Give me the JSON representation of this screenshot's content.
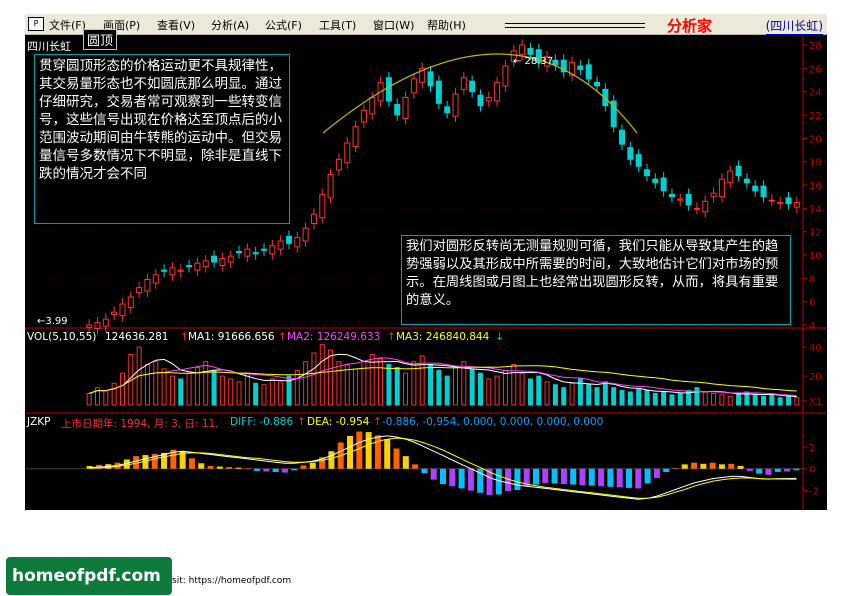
{
  "menubar": {
    "items": [
      "文件(F)",
      "画面(P)",
      "查看(V)",
      "分析(A)",
      "公式(F)",
      "工具(T)",
      "窗口(W)",
      "帮助(H)"
    ],
    "brand": "分析家",
    "stock": "四川长虹"
  },
  "main_panel": {
    "stock_name": "四川长虹",
    "pattern_tag": "圆顶",
    "high_label": "28.37",
    "low_label": "3.99",
    "note_left": "贯穿圆顶形态的价格运动更不具规律性，其交易量形态也不如圆底那么明显。通过仔细研究，交易者常可观察到一些转变信号，这些信号出现在价格达至顶点后的小范围波动期间由牛转熊的运动中。但交易量信号多数情况下不明显，除非是直线下跌的情况才会不同",
    "note_right": "我们对圆形反转尚无测量规则可循，我们只能从导致其产生的趋势强弱以及其形成中所需要的时间，大致地估计它们对市场的预示。在周线图或月图上也经常出现圆形反转，从而，将具有重要的意义。",
    "y_ticks": [
      "28",
      "26",
      "24",
      "22",
      "20",
      "18",
      "16",
      "14",
      "12",
      "10",
      "8",
      "6",
      "4"
    ]
  },
  "volume_panel": {
    "title": "VOL(5,10,55)",
    "value": "124636.281",
    "ma1": "MA1: 91666.656",
    "ma2": "MA2: 126249.633",
    "ma3": "MA3: 246840.844",
    "y_ticks": [
      "40",
      "20",
      "X1"
    ]
  },
  "indicator_panel": {
    "title": "JZKP",
    "date_text": "上市日期年: 1994, 月: 3, 日: 11,",
    "diff": "DIFF: -0.886",
    "dea": "DEA: -0.954",
    "vals": "-0.886, -0.954, 0.000, 0.000, 0.000, 0.000",
    "y_ticks": [
      "2",
      "0",
      "-2"
    ]
  },
  "colors": {
    "up": "#ff3030",
    "down": "#00d0d0",
    "axis": "#c00000",
    "arc": "#c8b400",
    "ma1": "#ffffff",
    "ma2": "#ff40ff",
    "ma3": "#ffff00"
  },
  "chart_data": [
    {
      "type": "candlestick",
      "title": "四川长虹",
      "ylim": [
        4,
        28
      ],
      "annotations": [
        "28.37",
        "3.99"
      ],
      "close": [
        4.0,
        4.2,
        4.5,
        5.1,
        5.8,
        6.4,
        7.2,
        7.9,
        8.3,
        8.6,
        8.9,
        8.7,
        9.0,
        9.3,
        9.5,
        9.4,
        9.7,
        9.9,
        10.2,
        10.5,
        10.1,
        10.4,
        10.8,
        11.2,
        11.0,
        11.5,
        12.3,
        13.5,
        15.2,
        16.9,
        18.2,
        19.6,
        21.0,
        22.4,
        23.5,
        24.8,
        23.2,
        22.0,
        23.5,
        25.1,
        26.0,
        24.5,
        23.0,
        22.2,
        23.8,
        25.2,
        24.0,
        22.8,
        23.5,
        24.8,
        26.2,
        27.5,
        28.0,
        27.2,
        26.5,
        27.0,
        26.3,
        25.7,
        26.5,
        25.9,
        25.1,
        24.5,
        22.8,
        21.0,
        19.5,
        18.2,
        17.6,
        16.8,
        16.2,
        15.5,
        15.0,
        14.8,
        14.3,
        14.0,
        14.6,
        15.3,
        16.5,
        17.2,
        16.8,
        16.2,
        15.5,
        15.0,
        14.7,
        14.5,
        14.4,
        14.5
      ]
    },
    {
      "type": "bar",
      "title": "VOL(5,10,55)",
      "values": [
        8,
        12,
        10,
        15,
        22,
        35,
        40,
        28,
        30,
        25,
        20,
        18,
        22,
        26,
        30,
        24,
        20,
        18,
        16,
        22,
        15,
        14,
        18,
        16,
        20,
        24,
        30,
        36,
        42,
        38,
        30,
        28,
        25,
        30,
        35,
        32,
        28,
        26,
        22,
        30,
        34,
        28,
        24,
        20,
        26,
        30,
        25,
        22,
        18,
        20,
        24,
        28,
        22,
        18,
        20,
        16,
        14,
        12,
        15,
        18,
        14,
        12,
        16,
        12,
        10,
        9,
        11,
        10,
        8,
        9,
        7,
        8,
        10,
        12,
        9,
        8,
        7,
        6,
        8,
        9,
        7,
        6,
        7,
        5,
        6,
        5
      ]
    },
    {
      "type": "bar",
      "title": "JZKP",
      "series": [
        {
          "name": "DIFF",
          "values": [
            0.1,
            0.15,
            0.2,
            0.3,
            0.5,
            0.7,
            0.9,
            1.1,
            1.3,
            1.5,
            1.6,
            1.5,
            1.4,
            1.3,
            1.2,
            1.1,
            1.0,
            0.9,
            0.8,
            0.7,
            0.6,
            0.5,
            0.5,
            0.6,
            0.7,
            0.9,
            1.2,
            1.6,
            2.0,
            2.4,
            2.7,
            2.9,
            3.0,
            2.9,
            2.7,
            2.4,
            2.0,
            1.6,
            1.2,
            0.8,
            0.4,
            0.0,
            -0.4,
            -0.8,
            -1.1,
            -1.3,
            -1.5,
            -1.6,
            -1.7,
            -1.8,
            -1.9,
            -2.0,
            -2.1,
            -2.2,
            -2.3,
            -2.4,
            -2.5,
            -2.6,
            -2.7,
            -2.8,
            -2.7,
            -2.5,
            -2.2,
            -1.9,
            -1.6,
            -1.3,
            -1.1,
            -0.9,
            -0.8,
            -0.7,
            -0.7,
            -0.8,
            -0.9,
            -0.95,
            -0.9,
            -0.9,
            -0.88
          ]
        },
        {
          "name": "DEA",
          "values": [
            0.05,
            0.08,
            0.12,
            0.2,
            0.35,
            0.5,
            0.7,
            0.9,
            1.1,
            1.25,
            1.4,
            1.45,
            1.45,
            1.4,
            1.3,
            1.2,
            1.1,
            1.0,
            0.95,
            0.85,
            0.75,
            0.65,
            0.6,
            0.6,
            0.65,
            0.75,
            0.95,
            1.2,
            1.5,
            1.85,
            2.2,
            2.5,
            2.7,
            2.8,
            2.75,
            2.6,
            2.35,
            2.05,
            1.7,
            1.3,
            0.9,
            0.5,
            0.1,
            -0.3,
            -0.65,
            -0.95,
            -1.2,
            -1.4,
            -1.55,
            -1.7,
            -1.8,
            -1.9,
            -2.0,
            -2.1,
            -2.2,
            -2.3,
            -2.4,
            -2.5,
            -2.6,
            -2.7,
            -2.7,
            -2.6,
            -2.4,
            -2.15,
            -1.9,
            -1.6,
            -1.35,
            -1.15,
            -1.0,
            -0.9,
            -0.85,
            -0.85,
            -0.9,
            -0.93,
            -0.94,
            -0.95,
            -0.954
          ]
        }
      ]
    }
  ]
}
